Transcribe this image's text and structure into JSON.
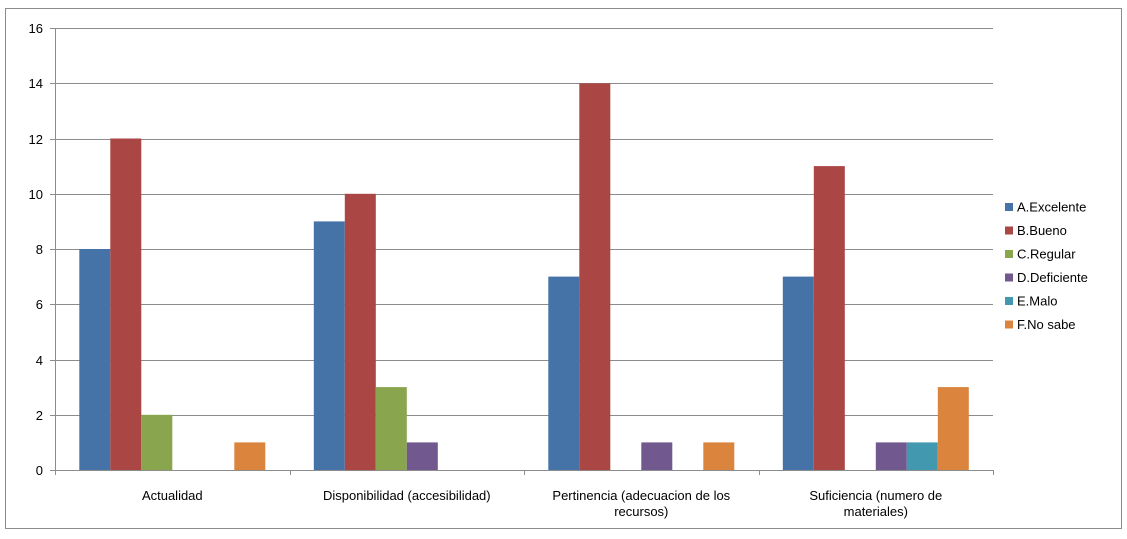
{
  "chart_data": {
    "type": "bar",
    "categories": [
      [
        "Actualidad"
      ],
      [
        "Disponibilidad (accesibilidad)"
      ],
      [
        "Pertinencia (adecuacion de los",
        "recursos)"
      ],
      [
        "Suficiencia (numero de",
        "materiales)"
      ]
    ],
    "series": [
      {
        "name": "A.Excelente",
        "color": "#4572A7",
        "values": [
          8,
          9,
          7,
          7
        ]
      },
      {
        "name": "B.Bueno",
        "color": "#AA4643",
        "values": [
          12,
          10,
          14,
          11
        ]
      },
      {
        "name": "C.Regular",
        "color": "#89A54E",
        "values": [
          2,
          3,
          0,
          0
        ]
      },
      {
        "name": "D.Deficiente",
        "color": "#71588F",
        "values": [
          0,
          1,
          1,
          1
        ]
      },
      {
        "name": "E.Malo",
        "color": "#4198AF",
        "values": [
          0,
          0,
          0,
          1
        ]
      },
      {
        "name": "F.No sabe",
        "color": "#DB843D",
        "values": [
          1,
          0,
          1,
          3
        ]
      }
    ],
    "y_ticks": [
      "0",
      "2",
      "4",
      "6",
      "8",
      "10",
      "12",
      "14",
      "16"
    ],
    "ylim": [
      0,
      16
    ],
    "grid": true,
    "legend_position": "right",
    "title": "",
    "xlabel": "",
    "ylabel": ""
  }
}
